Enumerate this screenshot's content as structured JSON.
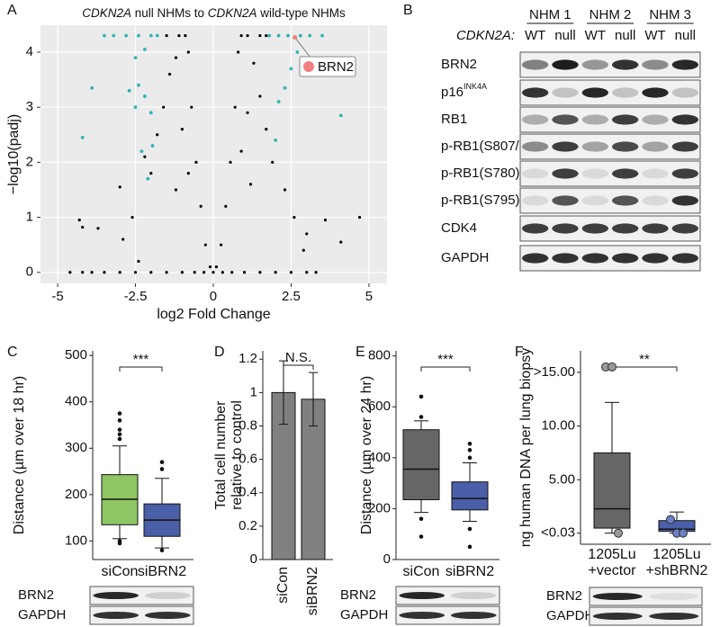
{
  "panel_labels": [
    "A",
    "B",
    "C",
    "D",
    "E",
    "F"
  ],
  "chart_data": [
    {
      "type": "scatter",
      "title": [
        {
          "text": "CDKN2A",
          "italic": true
        },
        {
          "text": " null NHMs to "
        },
        {
          "text": "CDKN2A",
          "italic": true
        },
        {
          "text": " wild-type NHMs"
        }
      ],
      "x_label": "log2 Fold Change",
      "y_label": "−log10(padj)",
      "xlim": [
        -5.55,
        5.58
      ],
      "ylim": [
        -0.2,
        4.49
      ],
      "xticks": [
        -5,
        -2.5,
        0,
        2.5,
        5
      ],
      "yticks": [
        0,
        1,
        2,
        3,
        4
      ],
      "grid": true,
      "background": "#ebebeb",
      "series": [
        {
          "color": "#000000",
          "x": [
            -4.6,
            -4.2,
            -3.9,
            -3.5,
            -3.0,
            -2.5,
            -2.0,
            -1.5,
            -1.0,
            -0.6,
            -0.3,
            0,
            0.3,
            0.6,
            1.0,
            1.5,
            2.0,
            2.5,
            3.0,
            3.3,
            -4.3,
            -4.2,
            -3.7,
            -3.0,
            -2.9,
            -2.6,
            -2.2,
            -2.0,
            -1.8,
            -1.6,
            -1.4,
            -1.2,
            -1.1,
            -0.9,
            -0.8,
            -0.7,
            -0.55,
            -0.4,
            -0.25,
            -0.1,
            0.1,
            0.25,
            0.4,
            0.55,
            0.7,
            0.8,
            0.9,
            1.1,
            1.3,
            1.5,
            1.7,
            1.9,
            2.3,
            2.6,
            3.0,
            3.6,
            4.1,
            4.7,
            -1.5,
            -1.8,
            1.5,
            1.7,
            -2.4,
            2.9,
            -1.2,
            1.2,
            -0.8,
            0.9,
            -1.0,
            1.1
          ],
          "y": [
            0,
            0,
            0,
            0,
            0,
            0,
            0,
            0,
            0,
            0,
            0,
            0,
            0,
            0,
            0,
            0,
            0,
            0,
            0,
            0,
            0.95,
            0.82,
            0.8,
            1.55,
            0.6,
            1.0,
            2.1,
            1.8,
            2.5,
            3.0,
            3.6,
            3.9,
            4.3,
            4.3,
            4.0,
            3.0,
            2.0,
            1.2,
            0.5,
            0.1,
            0.1,
            0.5,
            1.2,
            2.0,
            3.0,
            4.0,
            4.3,
            4.3,
            3.8,
            3.2,
            2.6,
            2.0,
            1.5,
            1.0,
            0.7,
            0.95,
            0.55,
            1.0,
            4.3,
            4.3,
            4.3,
            4.3,
            0.2,
            0.4,
            1.5,
            1.6,
            1.8,
            2.2,
            2.6,
            2.9
          ]
        },
        {
          "color": "#2fb3b3",
          "x": [
            -3.5,
            -3.2,
            -2.8,
            -2.4,
            -2.0,
            -1.8,
            1.8,
            2.1,
            2.4,
            2.8,
            3.1,
            3.5,
            -4.2,
            -3.9,
            -2.7,
            -2.5,
            -2.2,
            -2.4,
            -2.0,
            -2.1,
            -1.95,
            -2.3,
            -2.5,
            -2.2,
            2.7,
            2.5,
            4.1,
            2.3,
            2.1,
            2.0
          ],
          "y": [
            4.3,
            4.3,
            4.3,
            4.3,
            4.3,
            4.3,
            4.3,
            4.3,
            4.3,
            4.3,
            4.3,
            4.3,
            2.45,
            3.35,
            3.3,
            3.9,
            4.05,
            3.4,
            2.9,
            1.7,
            2.3,
            2.2,
            3.0,
            3.2,
            4.0,
            3.7,
            2.85,
            3.35,
            3.1,
            2.4
          ]
        }
      ],
      "annotation": {
        "text": "BRN2",
        "x": 2.62,
        "y": 4.27,
        "color": "#f08080"
      }
    },
    {
      "type": "box",
      "y_label": "Distance (µm over 18 hr)",
      "categories": [
        "siCon",
        "siBRN2"
      ],
      "ylim": [
        60,
        510
      ],
      "yticks": [
        100,
        200,
        300,
        400,
        500
      ],
      "significance": "***",
      "boxes": [
        {
          "color": "#8dc663",
          "whisker_low": 105,
          "q1": 135,
          "median": 190,
          "q3": 243,
          "whisker_high": 305,
          "outliers": [
            375,
            360,
            340,
            330,
            320,
            100,
            95
          ]
        },
        {
          "color": "#4a5fa8",
          "whisker_low": 85,
          "q1": 110,
          "median": 145,
          "q3": 180,
          "whisker_high": 235,
          "outliers": [
            270,
            255,
            80
          ]
        }
      ]
    },
    {
      "type": "bar",
      "y_label": [
        "Total cell number",
        "relative to control"
      ],
      "categories": [
        "siCon",
        "siBRN2"
      ],
      "values": [
        1.0,
        0.96
      ],
      "errors": [
        0.19,
        0.16
      ],
      "color": "#808080",
      "ylim": [
        0,
        1.25
      ],
      "yticks": [
        0,
        0.2,
        0.4,
        0.6,
        0.8,
        1,
        1.2
      ],
      "significance": "N.S."
    },
    {
      "type": "box",
      "y_label": "Distance (µm over 24 hr)",
      "categories": [
        "siCon",
        "siBRN2"
      ],
      "ylim": [
        0,
        820
      ],
      "yticks": [
        0,
        200,
        400,
        600,
        800
      ],
      "significance": "***",
      "boxes": [
        {
          "color": "#666666",
          "whisker_low": 185,
          "q1": 235,
          "median": 355,
          "q3": 510,
          "whisker_high": 545,
          "outliers": [
            640,
            560,
            160,
            90
          ]
        },
        {
          "color": "#4a5fa8",
          "whisker_low": 150,
          "q1": 195,
          "median": 240,
          "q3": 305,
          "whisker_high": 380,
          "outliers": [
            455,
            430,
            400,
            120,
            50
          ]
        }
      ]
    },
    {
      "type": "box",
      "y_label": "ng human DNA per lung biopsy",
      "categories": [
        [
          "1205Lu",
          "+vector"
        ],
        [
          "1205Lu",
          "+shBRN2"
        ]
      ],
      "ylim": [
        -1,
        17
      ],
      "yticks": [
        {
          "value": 15,
          "label": ">15.00"
        },
        {
          "value": 10,
          "label": "10.00"
        },
        {
          "value": 5,
          "label": "5.00"
        },
        {
          "value": 0.03,
          "label": "<0.03"
        }
      ],
      "significance": "**",
      "boxes": [
        {
          "color": "#666666",
          "point_color": "#999999",
          "whisker_low": 0.03,
          "q1": 0.5,
          "median": 2.3,
          "q3": 7.5,
          "whisker_high": 12.2,
          "points": [
            15.5,
            15.5,
            0.03
          ]
        },
        {
          "color": "#4a5fa8",
          "point_color": "#6a7fc8",
          "whisker_low": 0.03,
          "q1": 0.2,
          "median": 0.4,
          "q3": 1.2,
          "whisker_high": 2.0,
          "points": [
            1.3,
            0.03,
            0.03
          ]
        }
      ]
    }
  ],
  "blots": [
    {
      "groups": [
        "NHM 1",
        "NHM 2",
        "NHM 3"
      ],
      "lane_header": "CDKN2A:",
      "lanes": [
        "WT",
        "null",
        "WT",
        "null",
        "WT",
        "null"
      ],
      "rows": [
        {
          "label": "BRN2"
        },
        {
          "label": "p16",
          "sup": "INK4A"
        },
        {
          "label": "RB1"
        },
        {
          "label": "p-RB1(S807/811)"
        },
        {
          "label": "p-RB1(S780)"
        },
        {
          "label": "p-RB1(S795)"
        },
        {
          "label": "CDK4"
        },
        {
          "label": "GAPDH"
        }
      ]
    },
    {
      "rows": [
        {
          "label": "BRN2"
        },
        {
          "label": "GAPDH"
        }
      ]
    },
    {
      "rows": [
        {
          "label": "BRN2"
        },
        {
          "label": "GAPDH"
        }
      ]
    },
    {
      "rows": [
        {
          "label": "BRN2"
        },
        {
          "label": "GAPDH"
        }
      ]
    }
  ]
}
